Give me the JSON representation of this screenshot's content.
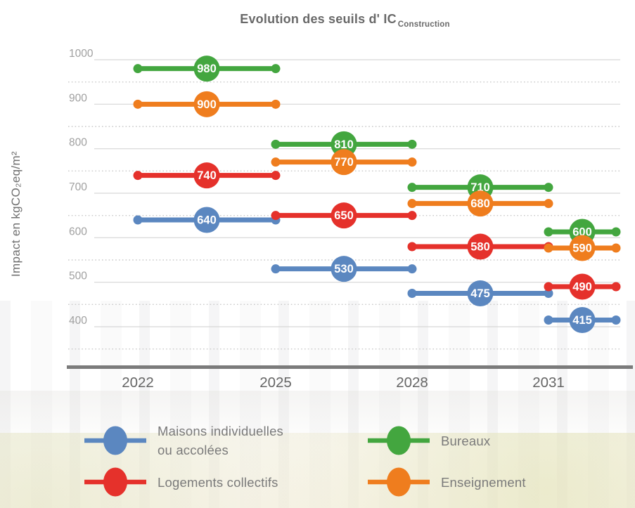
{
  "title": {
    "main": "Evolution des seuils d' IC",
    "subscript": "Construction"
  },
  "chart_data": {
    "type": "line",
    "variant": "horizontal stepped threshold segments with value bubbles (dumbbell style)",
    "title": "Evolution des seuils d' IC Construction",
    "ylabel": "Impact en kgCO₂eq/m²",
    "xlabel": "",
    "x_ticks": [
      "2022",
      "2025",
      "2028",
      "2031"
    ],
    "categories": [
      "2022-2025",
      "2025-2028",
      "2028-2031",
      "2031+"
    ],
    "y_ticks": [
      1000,
      900,
      800,
      700,
      600,
      500,
      400
    ],
    "ylim": [
      350,
      1030
    ],
    "grid": "solid light line at each hundred, dotted line at each fifty",
    "legend_position": "bottom, two columns",
    "series": [
      {
        "name": "Maisons individuelles ou accolées",
        "color": "#5b87c0",
        "values": [
          640,
          530,
          475,
          415
        ]
      },
      {
        "name": "Logements collectifs",
        "color": "#e5312b",
        "values": [
          740,
          650,
          580,
          490
        ]
      },
      {
        "name": "Bureaux",
        "color": "#43a63f",
        "values": [
          980,
          810,
          710,
          600
        ]
      },
      {
        "name": "Enseignement",
        "color": "#ef7d1e",
        "values": [
          900,
          770,
          680,
          590
        ]
      }
    ]
  },
  "legend": {
    "items": [
      {
        "lines": [
          "Maisons individuelles",
          "ou accolées"
        ],
        "color": "#5b87c0",
        "column": 0,
        "row": 0
      },
      {
        "lines": [
          "Bureaux"
        ],
        "color": "#43a63f",
        "column": 1,
        "row": 0
      },
      {
        "lines": [
          "Logements collectifs"
        ],
        "color": "#e5312b",
        "column": 0,
        "row": 1
      },
      {
        "lines": [
          "Enseignement"
        ],
        "color": "#ef7d1e",
        "column": 1,
        "row": 1
      }
    ]
  },
  "colors": {
    "axis_line": "#7b7b7b",
    "grid_solid": "#d6d6d6",
    "grid_dotted": "#c9c9c9",
    "y_tick_label": "#a0a0a0",
    "x_tick_label": "#666666",
    "title_text": "#696969",
    "bubble_text": "#ffffff"
  }
}
